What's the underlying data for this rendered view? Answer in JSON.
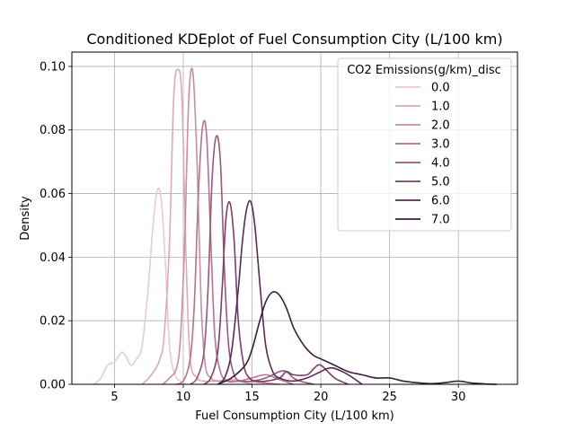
{
  "chart_data": {
    "type": "line",
    "title": "Conditioned KDEplot of Fuel Consumption City (L/100 km)",
    "xlabel": "Fuel Consumption City (L/100 km)",
    "ylabel": "Density",
    "xlim": [
      1.9,
      34.3
    ],
    "ylim": [
      0,
      0.1045
    ],
    "xticks": [
      5,
      10,
      15,
      20,
      25,
      30
    ],
    "yticks": [
      0.0,
      0.02,
      0.04,
      0.06,
      0.08,
      0.1
    ],
    "xtick_labels": [
      "5",
      "10",
      "15",
      "20",
      "25",
      "30"
    ],
    "ytick_labels": [
      "0.00",
      "0.02",
      "0.04",
      "0.06",
      "0.08",
      "0.10"
    ],
    "grid": true,
    "legend": {
      "title": "CO2 Emissions(g/km)_disc",
      "placement": "top-right"
    },
    "series": [
      {
        "name": "0.0",
        "color": "#ebcacb",
        "x": [
          3.5,
          4.0,
          4.5,
          5.0,
          5.5,
          5.8,
          6.2,
          6.6,
          7.0,
          7.4,
          7.8,
          8.1,
          8.4,
          8.7,
          9.0,
          9.4,
          9.8,
          10.2
        ],
        "y": [
          0.0,
          0.002,
          0.006,
          0.007,
          0.01,
          0.009,
          0.006,
          0.008,
          0.012,
          0.028,
          0.05,
          0.061,
          0.058,
          0.038,
          0.012,
          0.003,
          0.001,
          0.0
        ]
      },
      {
        "name": "1.0",
        "color": "#ddaab2",
        "x": [
          7.0,
          7.5,
          8.0,
          8.3,
          8.6,
          9.0,
          9.3,
          9.6,
          9.9,
          10.2,
          10.5,
          11.0,
          11.5,
          12.5,
          13.5,
          15.0
        ],
        "y": [
          0.0,
          0.002,
          0.005,
          0.008,
          0.015,
          0.045,
          0.09,
          0.099,
          0.09,
          0.04,
          0.008,
          0.002,
          0.001,
          0.001,
          0.0015,
          0.0
        ]
      },
      {
        "name": "2.0",
        "color": "#cc8da3",
        "x": [
          8.5,
          9.0,
          9.5,
          9.8,
          10.1,
          10.4,
          10.7,
          11.0,
          11.3,
          11.6,
          12.0,
          12.5,
          13.5,
          15.0,
          17.0
        ],
        "y": [
          0.0,
          0.002,
          0.005,
          0.015,
          0.045,
          0.09,
          0.098,
          0.07,
          0.025,
          0.006,
          0.002,
          0.001,
          0.001,
          0.0008,
          0.0
        ]
      },
      {
        "name": "3.0",
        "color": "#b57191",
        "x": [
          9.5,
          10.0,
          10.5,
          10.8,
          11.1,
          11.4,
          11.7,
          12.0,
          12.3,
          12.7,
          13.2,
          14.0,
          15.0,
          16.0,
          17.0,
          18.0
        ],
        "y": [
          0.0,
          0.001,
          0.008,
          0.025,
          0.06,
          0.081,
          0.078,
          0.045,
          0.015,
          0.004,
          0.001,
          0.001,
          0.002,
          0.003,
          0.0015,
          0.0
        ]
      },
      {
        "name": "4.0",
        "color": "#98577c",
        "x": [
          10.5,
          11.0,
          11.5,
          11.8,
          12.1,
          12.4,
          12.7,
          13.0,
          13.3,
          13.7,
          14.2,
          15.0,
          16.0,
          17.0,
          17.5,
          18.0,
          18.5,
          19.5
        ],
        "y": [
          0.0,
          0.002,
          0.01,
          0.03,
          0.065,
          0.078,
          0.07,
          0.035,
          0.012,
          0.003,
          0.001,
          0.001,
          0.002,
          0.004,
          0.004,
          0.002,
          0.001,
          0.0
        ]
      },
      {
        "name": "5.0",
        "color": "#7b3f6a",
        "x": [
          11.5,
          12.0,
          12.5,
          12.8,
          13.1,
          13.4,
          13.7,
          14.0,
          14.4,
          14.8,
          15.3,
          16.0,
          17.0,
          17.5,
          18.0,
          19.0,
          19.5,
          20.0,
          21.0,
          22.0
        ],
        "y": [
          0.0,
          0.002,
          0.01,
          0.028,
          0.052,
          0.057,
          0.045,
          0.02,
          0.006,
          0.002,
          0.001,
          0.001,
          0.002,
          0.004,
          0.003,
          0.003,
          0.005,
          0.006,
          0.002,
          0.0
        ]
      },
      {
        "name": "6.0",
        "color": "#5b2a56",
        "x": [
          12.5,
          13.0,
          13.5,
          14.0,
          14.3,
          14.6,
          14.9,
          15.2,
          15.6,
          16.0,
          16.5,
          17.0,
          18.0,
          19.0,
          20.0,
          20.5,
          21.0,
          22.0,
          23.0
        ],
        "y": [
          0.0,
          0.002,
          0.01,
          0.03,
          0.045,
          0.055,
          0.0575,
          0.05,
          0.03,
          0.012,
          0.004,
          0.002,
          0.001,
          0.002,
          0.004,
          0.005,
          0.005,
          0.003,
          0.0
        ]
      },
      {
        "name": "7.0",
        "color": "#3b1d3d",
        "x": [
          12.5,
          13.5,
          14.5,
          15.0,
          15.5,
          16.0,
          16.5,
          17.0,
          17.5,
          18.0,
          18.5,
          19.0,
          19.5,
          20.0,
          21.0,
          22.0,
          23.0,
          24.0,
          25.0,
          26.0,
          27.0,
          28.0,
          29.0,
          30.0,
          31.0,
          32.0,
          32.8
        ],
        "y": [
          0.0,
          0.002,
          0.006,
          0.011,
          0.019,
          0.026,
          0.029,
          0.028,
          0.024,
          0.018,
          0.014,
          0.011,
          0.009,
          0.008,
          0.006,
          0.004,
          0.003,
          0.002,
          0.002,
          0.001,
          0.0005,
          0.0002,
          0.0005,
          0.001,
          0.0004,
          0.0001,
          0.0
        ]
      }
    ]
  }
}
